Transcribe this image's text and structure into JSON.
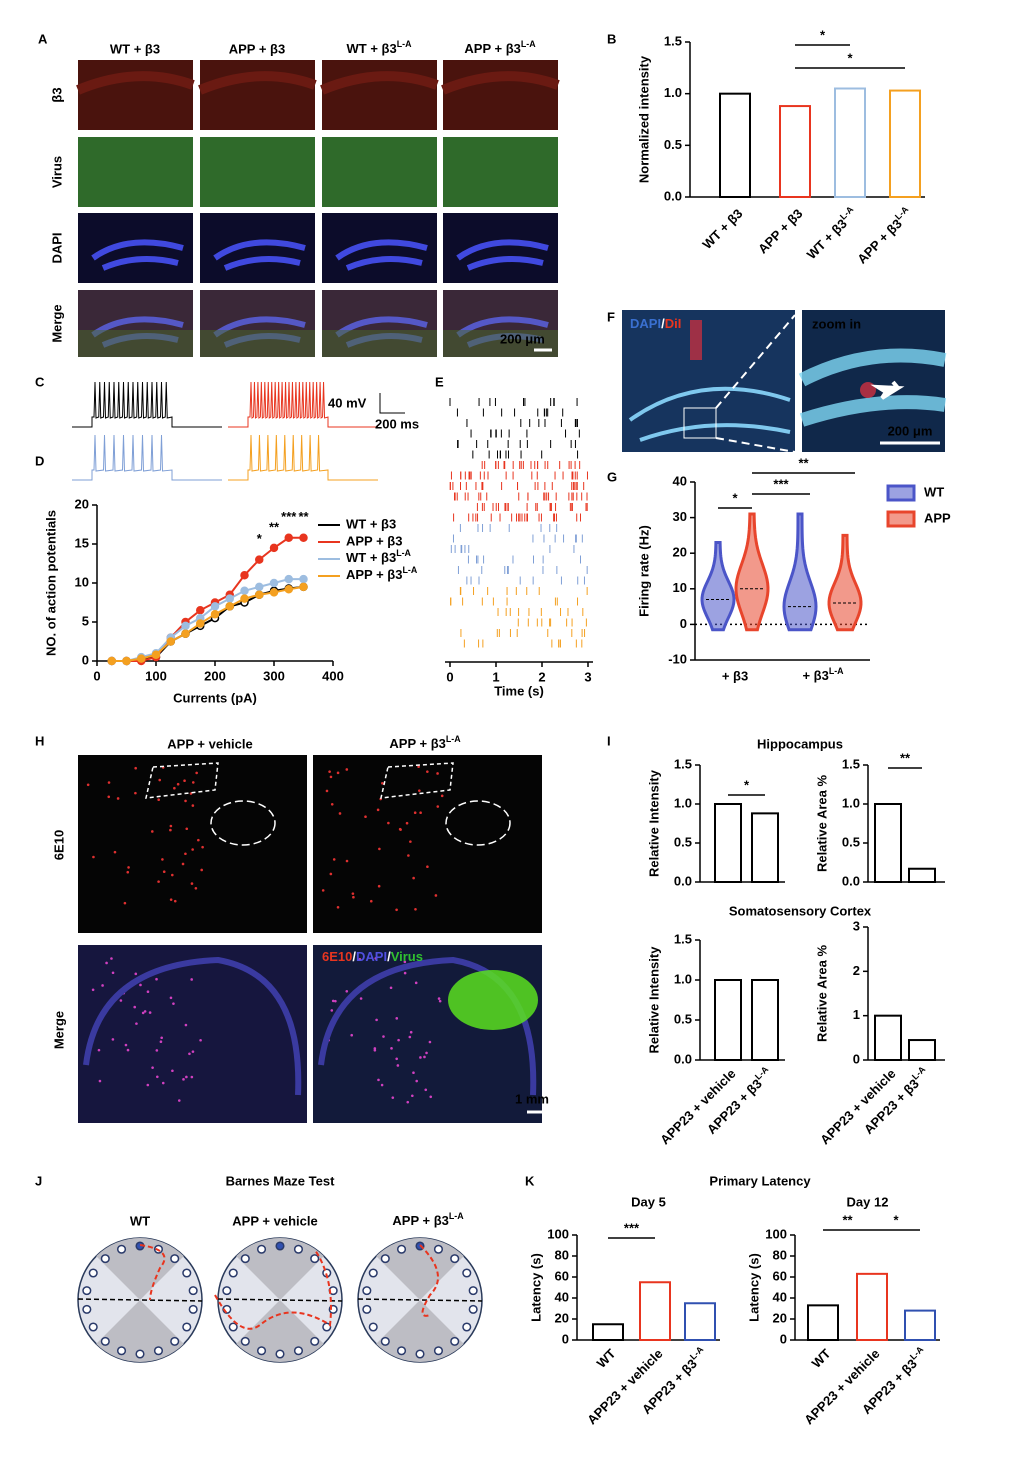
{
  "figure": {
    "panel_letters": [
      "A",
      "B",
      "C",
      "D",
      "E",
      "F",
      "G",
      "H",
      "I",
      "J",
      "K"
    ],
    "A": {
      "columns": [
        "WT + β3",
        "APP + β3",
        [
          "WT + β3",
          "L-A"
        ],
        [
          "APP + β3",
          "L-A"
        ]
      ],
      "rows": [
        "β3",
        "Virus",
        "DAPI",
        "Merge"
      ],
      "scale_bar": "200 μm"
    },
    "C": {
      "voltage_scale": "40 mV",
      "time_scale": "200 ms"
    },
    "F": {
      "stain": [
        "DAPI",
        "/",
        "DiI"
      ],
      "zoom": "zoom in",
      "scale_bar": "200 μm"
    },
    "H": {
      "columns": [
        "APP + vehicle",
        [
          "APP + β3",
          "L-A"
        ]
      ],
      "rows": [
        "6E10",
        "Merge"
      ],
      "stain": [
        "6E10",
        "/",
        "DAPI",
        "/",
        "Virus"
      ],
      "scale_bar": "1 mm"
    },
    "I": {
      "titles": [
        "Hippocampus",
        "Somatosensory Cortex"
      ]
    },
    "J": {
      "title": "Barnes Maze Test",
      "groups": [
        "WT",
        "APP + vehicle",
        [
          "APP + β3",
          "L-A"
        ]
      ]
    },
    "K": {
      "title": "Primary Latency"
    }
  },
  "chart_data": [
    {
      "type": "bar",
      "ylabel": "Normalized intensity",
      "categories": [
        "WT + β3",
        "APP + β3",
        [
          "WT + β3",
          "L-A"
        ],
        [
          "APP + β3",
          "L-A"
        ]
      ],
      "values": [
        1.0,
        0.88,
        1.05,
        1.03
      ],
      "colors": [
        "#000000",
        "#e8351f",
        "#9dbde0",
        "#f4a020"
      ],
      "ylim": [
        0,
        1.5
      ],
      "yticks": [
        {
          "value": 0,
          "label": "0.0"
        },
        {
          "value": 0.5,
          "label": "0.5"
        },
        {
          "value": 1,
          "label": "1.0"
        },
        {
          "value": 1.5,
          "label": "1.5"
        }
      ],
      "significance": [
        "*",
        "*"
      ]
    },
    {
      "type": "line",
      "xlabel": "Currents (pA)",
      "ylabel": "NO. of action potentials",
      "x": [
        25,
        50,
        75,
        100,
        125,
        150,
        175,
        200,
        225,
        250,
        275,
        300,
        325,
        350
      ],
      "xlim": [
        0,
        400
      ],
      "xticks": [
        0,
        100,
        200,
        300,
        400
      ],
      "ylim": [
        0,
        20
      ],
      "yticks": [
        0,
        5,
        10,
        15,
        20
      ],
      "series": [
        {
          "name": "WT + β3",
          "color": "#000000",
          "values": [
            0,
            0,
            0.2,
            0.5,
            2.5,
            3.5,
            4.5,
            5.5,
            7,
            7.5,
            8.5,
            9,
            9.3,
            9.5
          ]
        },
        {
          "name": "APP + β3",
          "color": "#e8351f",
          "values": [
            0,
            0,
            0,
            0.5,
            3,
            5,
            6.5,
            7.5,
            8.5,
            11,
            13,
            14.5,
            15.8,
            15.8
          ]
        },
        {
          "name": [
            "WT + β3",
            "L-A"
          ],
          "color": "#9dbde0",
          "values": [
            0,
            0,
            0.5,
            1,
            3,
            4.5,
            5.5,
            7,
            8,
            9,
            9.5,
            10,
            10.5,
            10.5
          ]
        },
        {
          "name": [
            "APP + β3",
            "L-A"
          ],
          "color": "#f4a020",
          "values": [
            0,
            0,
            0.3,
            0.8,
            2.5,
            3.5,
            4.8,
            6,
            7,
            8,
            8.5,
            8.8,
            9.2,
            9.5
          ]
        }
      ],
      "significance": [
        "*",
        "**",
        "***",
        "**"
      ]
    },
    {
      "type": "raster",
      "xlabel": "Time (s)",
      "xlim": [
        0,
        3
      ],
      "xticks": [
        0,
        1,
        2,
        3
      ]
    },
    {
      "type": "violin",
      "ylabel": "Firing rate (Hz)",
      "categories": [
        "+ β3",
        [
          "+ β3",
          "L-A"
        ]
      ],
      "ylim": [
        -10,
        40
      ],
      "yticks": [
        -10,
        0,
        10,
        20,
        30,
        40
      ],
      "series": [
        {
          "name": "WT",
          "color": "#4b55c8",
          "values": [
            7,
            5
          ],
          "max": [
            23,
            31
          ]
        },
        {
          "name": "APP",
          "color": "#e8452c",
          "values": [
            10,
            6
          ],
          "max": [
            31,
            25
          ]
        }
      ],
      "significance": [
        "*",
        "***",
        "**"
      ]
    },
    {
      "type": "bar",
      "ylabel": "Relative Intensity",
      "values": [
        1.0,
        0.88
      ],
      "colors": [
        "#000000",
        "#000000"
      ],
      "ylim": [
        0,
        1.5
      ],
      "yticks": [
        {
          "value": 0,
          "label": "0.0"
        },
        {
          "value": 0.5,
          "label": "0.5"
        },
        {
          "value": 1,
          "label": "1.0"
        },
        {
          "value": 1.5,
          "label": "1.5"
        }
      ],
      "significance": [
        "*"
      ]
    },
    {
      "type": "bar",
      "ylabel": "Relative Area %",
      "values": [
        1.0,
        0.17
      ],
      "colors": [
        "#000000",
        "#000000"
      ],
      "ylim": [
        0,
        1.5
      ],
      "yticks": [
        {
          "value": 0,
          "label": "0.0"
        },
        {
          "value": 0.5,
          "label": "0.5"
        },
        {
          "value": 1,
          "label": "1.0"
        },
        {
          "value": 1.5,
          "label": "1.5"
        }
      ],
      "significance": [
        "**"
      ]
    },
    {
      "type": "bar",
      "ylabel": "Relative Intensity",
      "categories": [
        "APP23 + vehicle",
        [
          "APP23 + β3",
          "L-A"
        ]
      ],
      "values": [
        1.0,
        1.0
      ],
      "colors": [
        "#000000",
        "#000000"
      ],
      "ylim": [
        0,
        1.5
      ],
      "yticks": [
        {
          "value": 0,
          "label": "0.0"
        },
        {
          "value": 0.5,
          "label": "0.5"
        },
        {
          "value": 1,
          "label": "1.0"
        },
        {
          "value": 1.5,
          "label": "1.5"
        }
      ]
    },
    {
      "type": "bar",
      "ylabel": "Relative Area %",
      "categories": [
        "APP23 + vehicle",
        [
          "APP23 + β3",
          "L-A"
        ]
      ],
      "values": [
        1.0,
        0.45
      ],
      "colors": [
        "#000000",
        "#000000"
      ],
      "ylim": [
        0,
        3
      ],
      "yticks": [
        0,
        1,
        2,
        3
      ]
    },
    {
      "type": "bar",
      "title": "Day 5",
      "ylabel": "Latency (s)",
      "categories": [
        "WT",
        "APP23 + vehicle",
        [
          "APP23 + β3",
          "L-A"
        ]
      ],
      "values": [
        15,
        55,
        35
      ],
      "colors": [
        "#000000",
        "#e8351f",
        "#3050b0"
      ],
      "ylim": [
        0,
        100
      ],
      "yticks": [
        0,
        20,
        40,
        60,
        80,
        100
      ],
      "significance": [
        "***"
      ]
    },
    {
      "type": "bar",
      "title": "Day 12",
      "ylabel": "Latency (s)",
      "categories": [
        "WT",
        "APP23 + vehicle",
        [
          "APP23 + β3",
          "L-A"
        ]
      ],
      "values": [
        33,
        63,
        28
      ],
      "colors": [
        "#000000",
        "#e8351f",
        "#3050b0"
      ],
      "ylim": [
        0,
        100
      ],
      "yticks": [
        0,
        20,
        40,
        60,
        80,
        100
      ],
      "significance": [
        "**",
        "*"
      ]
    }
  ]
}
